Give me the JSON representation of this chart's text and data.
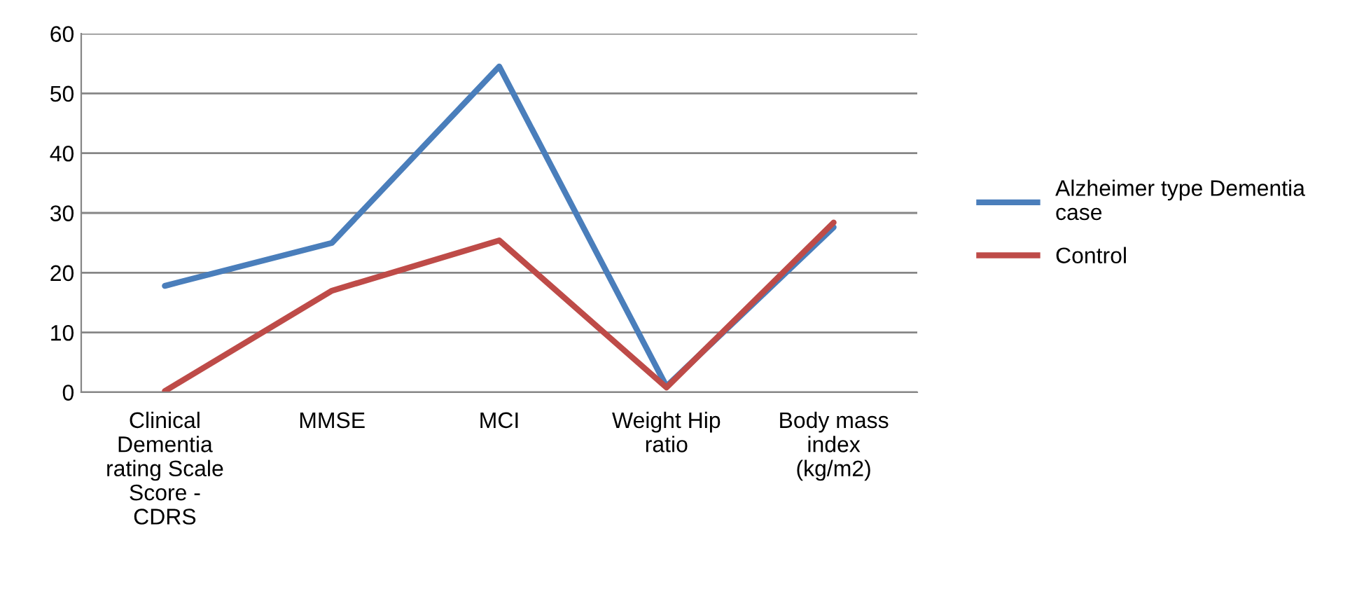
{
  "chart_data": {
    "type": "line",
    "categories": [
      "Clinical\nDementia\nrating Scale\nScore -\nCDRS",
      "MMSE",
      "MCI",
      "Weight Hip\nratio",
      "Body mass\nindex\n(kg/m2)"
    ],
    "series": [
      {
        "name": "Alzheimer type Dementia\ncase",
        "color": "#4a7ebb",
        "values": [
          17.8,
          25,
          54.5,
          1,
          27.6
        ]
      },
      {
        "name": "Control",
        "color": "#be4b48",
        "values": [
          0.2,
          17,
          25.4,
          0.8,
          28.4
        ]
      }
    ],
    "ylim": [
      0,
      60
    ],
    "yticks": [
      0,
      10,
      20,
      30,
      40,
      50,
      60
    ],
    "grid": "y",
    "legend": "right",
    "marker": "none",
    "line_style": "solid"
  }
}
